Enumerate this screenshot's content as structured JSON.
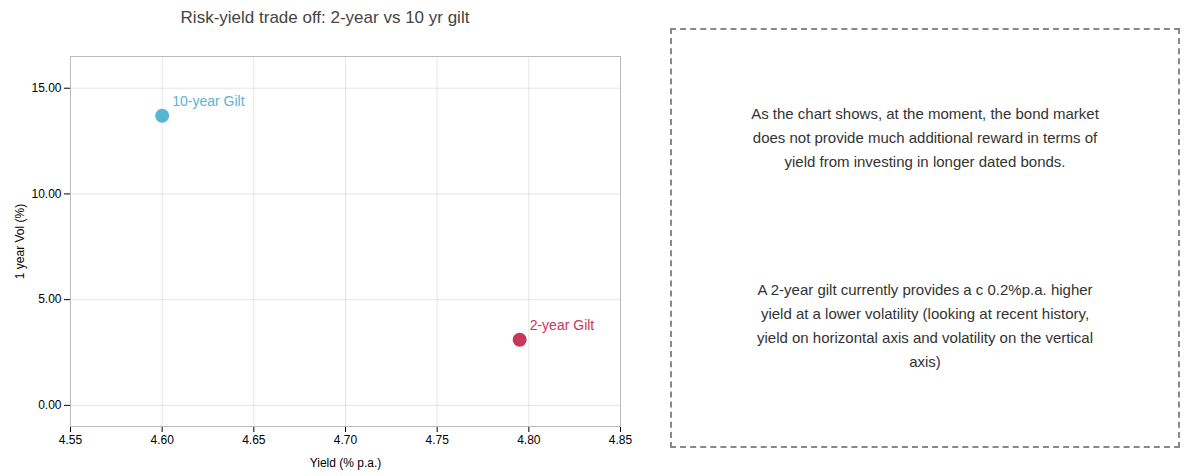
{
  "chart_data": {
    "type": "scatter",
    "title": "Risk-yield trade off: 2-year vs 10 yr gilt",
    "xlabel": "Yield (% p.a.)",
    "ylabel": "1 year Vol (%)",
    "series": [
      {
        "name": "10-year Gilt",
        "color": "#5ab4d4",
        "x": [
          4.6
        ],
        "y": [
          13.7
        ]
      },
      {
        "name": "2-year Gilt",
        "color": "#c8375a",
        "x": [
          4.795
        ],
        "y": [
          3.1
        ]
      }
    ],
    "xlim": [
      4.55,
      4.85
    ],
    "ylim": [
      -1,
      16.5
    ],
    "xticks": [
      4.55,
      {
        "value": 4.6,
        "label": "4.60"
      },
      4.65,
      {
        "value": 4.7,
        "label": "4.70"
      },
      4.75,
      {
        "value": 4.8,
        "label": "4.80"
      },
      4.85
    ],
    "yticks": [
      {
        "value": 0,
        "label": "0.00"
      },
      {
        "value": 5,
        "label": "5.00"
      },
      {
        "value": 10,
        "label": "10.00"
      },
      {
        "value": 15,
        "label": "15.00"
      }
    ],
    "grid": true,
    "annotations": [
      "As the chart shows, at the moment, the bond market\ndoes not provide much additional reward in terms of\nyield from investing in longer dated bonds.",
      "A 2-year gilt currently provides a c 0.2%p.a. higher\nyield at a lower volatility (looking at recent history,\nyield on horizontal axis and volatility on the vertical\naxis)"
    ]
  }
}
